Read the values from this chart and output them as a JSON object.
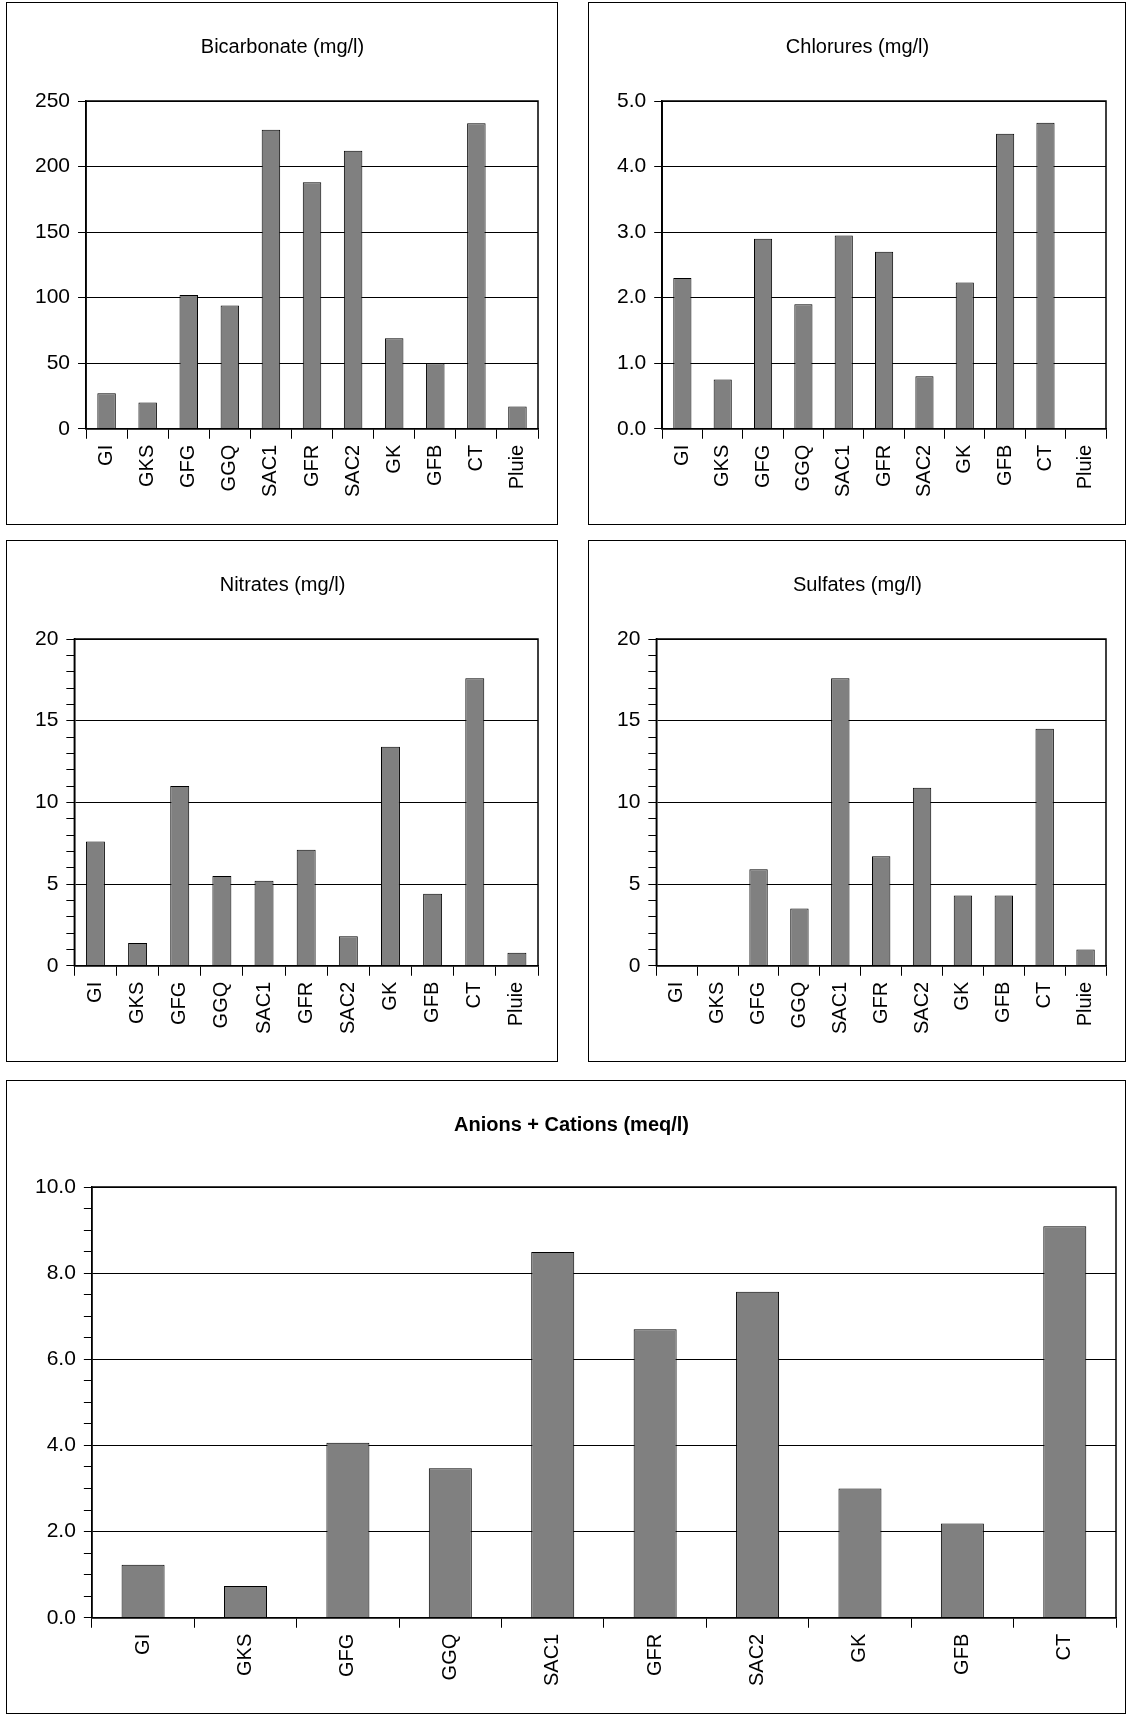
{
  "chart_data": [
    {
      "type": "bar",
      "title": "Bicarbonate (mg/l)",
      "categories": [
        "GI",
        "GKS",
        "GFG",
        "GGQ",
        "SAC1",
        "GFR",
        "SAC2",
        "GK",
        "GFB",
        "CT",
        "Pluie"
      ],
      "values": [
        27,
        20,
        102,
        94,
        228,
        188,
        212,
        69,
        50,
        233,
        17
      ],
      "color": "#808080",
      "ylim": [
        0,
        250
      ],
      "yticks": [
        0,
        50,
        100,
        150,
        200,
        250
      ],
      "grid": "y"
    },
    {
      "type": "bar",
      "title": "Chlorures (mg/l)",
      "categories": [
        "GI",
        "GKS",
        "GFG",
        "GGQ",
        "SAC1",
        "GFR",
        "SAC2",
        "GK",
        "GFB",
        "CT",
        "Pluie"
      ],
      "values": [
        2.3,
        0.75,
        2.9,
        1.9,
        2.95,
        2.7,
        0.8,
        2.23,
        4.5,
        4.67,
        null
      ],
      "color": "#808080",
      "ylim": [
        0,
        5
      ],
      "yticks": [
        {
          "value": 0,
          "label": "0.0"
        },
        {
          "value": 1,
          "label": "1.0"
        },
        {
          "value": 2,
          "label": "2.0"
        },
        {
          "value": 3,
          "label": "3.0"
        },
        {
          "value": 4,
          "label": "4.0"
        },
        {
          "value": 5,
          "label": "5.0"
        }
      ],
      "grid": "y"
    },
    {
      "type": "bar",
      "title": "Nitrates (mg/l)",
      "categories": [
        "GI",
        "GKS",
        "GFG",
        "GGQ",
        "SAC1",
        "GFR",
        "SAC2",
        "GK",
        "GFB",
        "CT",
        "Pluie"
      ],
      "values": [
        7.6,
        1.4,
        11.0,
        5.5,
        5.2,
        7.1,
        1.8,
        13.4,
        4.4,
        17.6,
        0.8
      ],
      "color": "#808080",
      "ylim": [
        0,
        20
      ],
      "yticks": [
        0,
        {
          "value": 1,
          "label": null
        },
        {
          "value": 2,
          "label": null
        },
        {
          "value": 3,
          "label": null
        },
        {
          "value": 4,
          "label": null
        },
        5,
        {
          "value": 6,
          "label": null
        },
        {
          "value": 7,
          "label": null
        },
        {
          "value": 8,
          "label": null
        },
        {
          "value": 9,
          "label": null
        },
        10,
        {
          "value": 11,
          "label": null
        },
        {
          "value": 12,
          "label": null
        },
        {
          "value": 13,
          "label": null
        },
        {
          "value": 14,
          "label": null
        },
        15,
        {
          "value": 16,
          "label": null
        },
        {
          "value": 17,
          "label": null
        },
        {
          "value": 18,
          "label": null
        },
        {
          "value": 19,
          "label": null
        },
        20
      ],
      "grid": "y"
    },
    {
      "type": "bar",
      "title": "Sulfates (mg/l)",
      "categories": [
        "GI",
        "GKS",
        "GFG",
        "GGQ",
        "SAC1",
        "GFR",
        "SAC2",
        "GK",
        "GFB",
        "CT",
        "Pluie"
      ],
      "values": [
        null,
        null,
        5.9,
        3.5,
        17.6,
        6.7,
        10.9,
        4.3,
        4.3,
        14.5,
        1.0
      ],
      "color": "#808080",
      "ylim": [
        0,
        20
      ],
      "yticks": [
        0,
        {
          "value": 1,
          "label": null
        },
        {
          "value": 2,
          "label": null
        },
        {
          "value": 3,
          "label": null
        },
        {
          "value": 4,
          "label": null
        },
        5,
        {
          "value": 6,
          "label": null
        },
        {
          "value": 7,
          "label": null
        },
        {
          "value": 8,
          "label": null
        },
        {
          "value": 9,
          "label": null
        },
        10,
        {
          "value": 11,
          "label": null
        },
        {
          "value": 12,
          "label": null
        },
        {
          "value": 13,
          "label": null
        },
        {
          "value": 14,
          "label": null
        },
        15,
        {
          "value": 16,
          "label": null
        },
        {
          "value": 17,
          "label": null
        },
        {
          "value": 18,
          "label": null
        },
        {
          "value": 19,
          "label": null
        },
        20
      ],
      "grid": "y"
    },
    {
      "type": "bar",
      "title": "Anions + Cations (meq/l)",
      "categories": [
        "GI",
        "GKS",
        "GFG",
        "GGQ",
        "SAC1",
        "GFR",
        "SAC2",
        "GK",
        "GFB",
        "CT"
      ],
      "values": [
        1.23,
        0.74,
        4.06,
        3.47,
        8.49,
        6.7,
        7.57,
        3.0,
        2.19,
        9.09
      ],
      "color": "#808080",
      "ylim": [
        0,
        10
      ],
      "yticks": [
        {
          "value": 0,
          "label": "0.0"
        },
        {
          "value": 0.5,
          "label": null
        },
        {
          "value": 1,
          "label": null
        },
        {
          "value": 1.5,
          "label": null
        },
        {
          "value": 2,
          "label": "2.0"
        },
        {
          "value": 2.5,
          "label": null
        },
        {
          "value": 3,
          "label": null
        },
        {
          "value": 3.5,
          "label": null
        },
        {
          "value": 4,
          "label": "4.0"
        },
        {
          "value": 4.5,
          "label": null
        },
        {
          "value": 5,
          "label": null
        },
        {
          "value": 5.5,
          "label": null
        },
        {
          "value": 6,
          "label": "6.0"
        },
        {
          "value": 6.5,
          "label": null
        },
        {
          "value": 7,
          "label": null
        },
        {
          "value": 7.5,
          "label": null
        },
        {
          "value": 8,
          "label": "8.0"
        },
        {
          "value": 8.5,
          "label": null
        },
        {
          "value": 9,
          "label": null
        },
        {
          "value": 9.5,
          "label": null
        },
        {
          "value": 10,
          "label": "10.0"
        }
      ],
      "grid": "y"
    }
  ]
}
